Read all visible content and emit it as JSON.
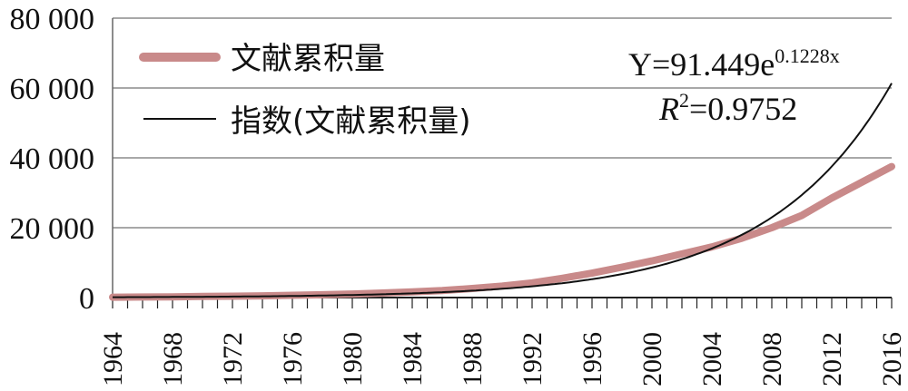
{
  "chart_data": {
    "type": "line",
    "title": "",
    "xlabel": "",
    "ylabel": "",
    "x": [
      1964,
      1966,
      1968,
      1970,
      1972,
      1974,
      1976,
      1978,
      1980,
      1982,
      1984,
      1986,
      1988,
      1990,
      1992,
      1994,
      1996,
      1998,
      2000,
      2002,
      2004,
      2006,
      2008,
      2010,
      2012,
      2014,
      2016
    ],
    "x_tick_labels": [
      "1964",
      "1968",
      "1972",
      "1976",
      "1980",
      "1984",
      "1988",
      "1992",
      "1996",
      "2000",
      "2004",
      "2008",
      "2012",
      "2016"
    ],
    "xlim": [
      1964,
      2016
    ],
    "ylim": [
      0,
      80000
    ],
    "y_tick_values": [
      0,
      20000,
      40000,
      60000,
      80000
    ],
    "y_tick_labels": [
      "0",
      "20 000",
      "40 000",
      "60 000",
      "80 000"
    ],
    "grid": "horizontal",
    "legend_position": "top-left",
    "series": [
      {
        "name": "文献累积量",
        "color": "#c98a8a",
        "values": [
          100,
          150,
          200,
          300,
          400,
          500,
          650,
          800,
          1000,
          1300,
          1600,
          2000,
          2600,
          3300,
          4200,
          5500,
          7000,
          8700,
          10500,
          12500,
          14500,
          17000,
          20000,
          23500,
          28500,
          33000,
          37500
        ]
      },
      {
        "name": "指数(文献累积量)",
        "color": "#111111",
        "fit": {
          "a": 91.449,
          "b": 0.1228,
          "x_start": 1963
        }
      }
    ],
    "annotations": {
      "equation_main": "Y=91.449e",
      "equation_exp": "0.1228x",
      "r2_label": "R",
      "r2_sup": "2",
      "r2_value": "=0.9752"
    }
  }
}
